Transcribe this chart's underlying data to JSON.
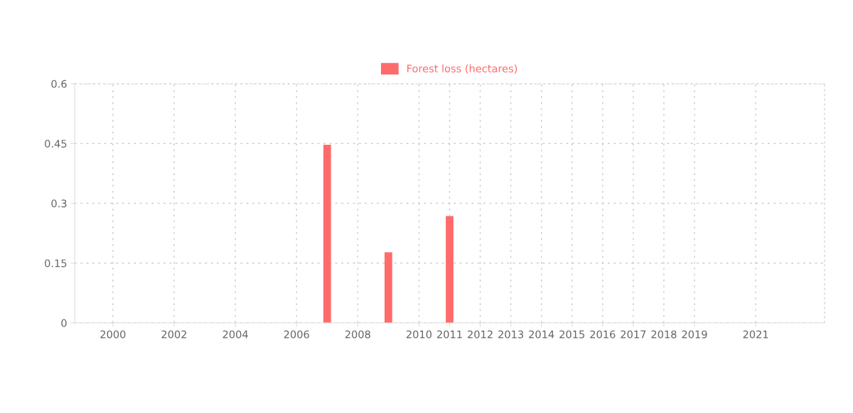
{
  "chart_data": {
    "type": "bar",
    "categories": [
      "2000",
      null,
      "2002",
      null,
      "2004",
      null,
      "2006",
      null,
      "2008",
      null,
      "2010",
      "2011",
      "2012",
      "2013",
      "2014",
      "2015",
      "2016",
      "2017",
      "2018",
      "2019",
      null,
      "2021"
    ],
    "series": [
      {
        "name": "Forest loss (hectares)",
        "color": "#ff6b6b",
        "values": [
          0,
          0,
          0,
          0,
          0,
          0,
          0,
          0.447,
          0,
          0.177,
          0,
          0.268,
          0,
          0,
          0,
          0,
          0,
          0,
          0,
          0,
          0,
          0
        ]
      }
    ],
    "ylim": [
      0,
      0.6
    ],
    "yticks": [
      0,
      0.15,
      0.3,
      0.45,
      0.6
    ],
    "grid": true,
    "legend": "top"
  }
}
